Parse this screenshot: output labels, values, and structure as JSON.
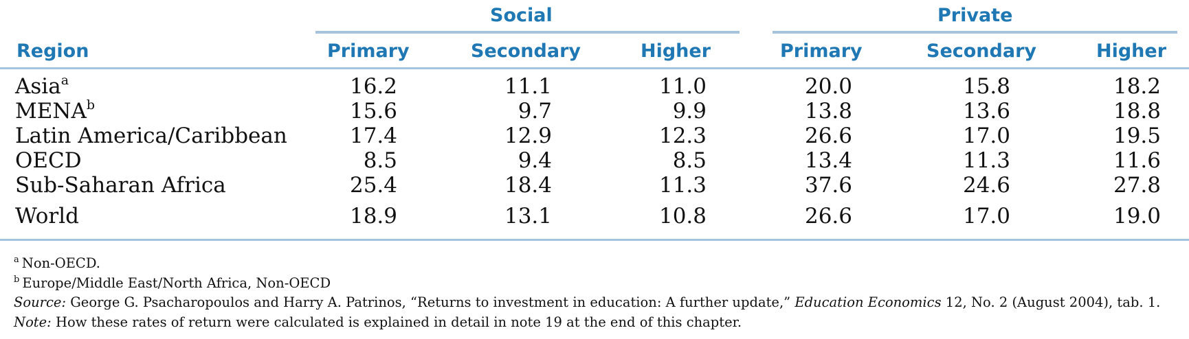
{
  "groups": {
    "social": "Social",
    "private": "Private"
  },
  "headers": {
    "region": "Region",
    "social_primary": "Primary",
    "social_secondary": "Secondary",
    "social_higher": "Higher",
    "private_primary": "Primary",
    "private_secondary": "Secondary",
    "private_higher": "Higher"
  },
  "rows": [
    {
      "region": "Asia",
      "mark": "a",
      "values": [
        "16.2",
        "11.1",
        "11.0",
        "20.0",
        "15.8",
        "18.2"
      ]
    },
    {
      "region": "MENA",
      "mark": "b",
      "values": [
        "15.6",
        "9.7",
        "9.9",
        "13.8",
        "13.6",
        "18.8"
      ]
    },
    {
      "region": "Latin America/Caribbean",
      "mark": "",
      "values": [
        "17.4",
        "12.9",
        "12.3",
        "26.6",
        "17.0",
        "19.5"
      ]
    },
    {
      "region": "OECD",
      "mark": "",
      "values": [
        "8.5",
        "9.4",
        "8.5",
        "13.4",
        "11.3",
        "11.6"
      ]
    },
    {
      "region": "Sub-Saharan Africa",
      "mark": "",
      "values": [
        "25.4",
        "18.4",
        "11.3",
        "37.6",
        "24.6",
        "27.8"
      ]
    },
    {
      "region": "World",
      "mark": "",
      "values": [
        "18.9",
        "13.1",
        "10.8",
        "26.6",
        "17.0",
        "19.0"
      ]
    }
  ],
  "notes": {
    "a_mark": "a",
    "a_text": "Non-OECD.",
    "b_mark": "b",
    "b_text": "Europe/Middle East/North Africa, Non-OECD",
    "source_label": "Source:",
    "source_text_1": "George G. Psacharopoulos and Harry A. Patrinos, “Returns to investment in education: A further update,”",
    "source_journal": "Education Economics",
    "source_text_2": "12, No. 2 (August 2004), tab. 1.",
    "note_label": "Note:",
    "note_text": "How these rates of return were calculated is explained in detail in note 19 at the end of this chapter."
  },
  "colors": {
    "header": "#1f78b3",
    "rule": "#a5c3dd",
    "text": "#111111"
  }
}
